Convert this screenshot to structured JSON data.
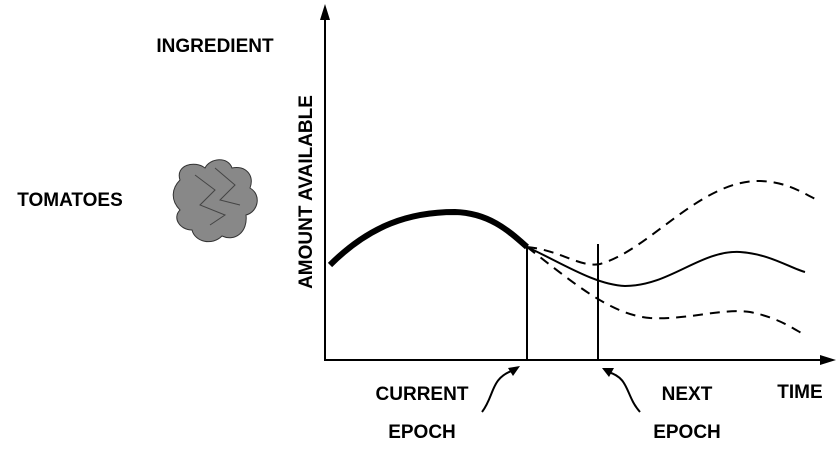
{
  "axis": {
    "y_label": "AMOUNT AVAILABLE",
    "x_label": "TIME"
  },
  "ingredient_header": "INGREDIENT",
  "ingredient": "TOMATOES",
  "markers": [
    {
      "lines": [
        "CURRENT",
        "EPOCH"
      ]
    },
    {
      "lines": [
        "NEXT",
        "EPOCH"
      ]
    }
  ]
}
